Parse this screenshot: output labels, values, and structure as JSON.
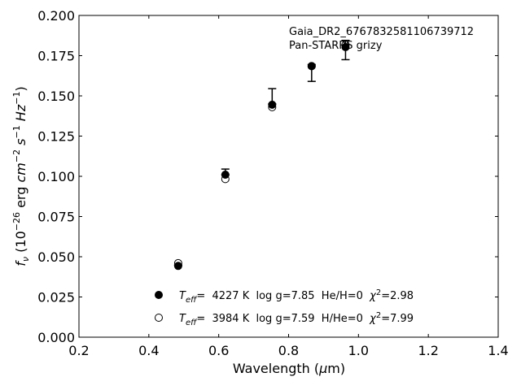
{
  "chart_data": {
    "type": "scatter",
    "title": "",
    "xlabel_main": "Wavelength (",
    "xlabel_mu": "μ",
    "xlabel_unit": "m)",
    "ylabel_parts": {
      "f": "f",
      "nu": "ν",
      "open": " (10",
      "exp26": "−26",
      "erg": " erg ",
      "cm": "cm",
      "exp2": "−2",
      "s": " s",
      "exp1a": "−1",
      "hz": " Hz",
      "exp1b": "−1",
      "close": ")"
    },
    "xlim": [
      0.2,
      1.4
    ],
    "ylim": [
      0.0,
      0.2
    ],
    "xticks": [
      "0.2",
      "0.4",
      "0.6",
      "0.8",
      "1.0",
      "1.2",
      "1.4"
    ],
    "yticks": [
      "0.000",
      "0.025",
      "0.050",
      "0.075",
      "0.100",
      "0.125",
      "0.150",
      "0.175",
      "0.200"
    ],
    "annotation": {
      "line1": "Gaia_DR2_6767832581106739712",
      "line2": "Pan-STARRS grizy"
    },
    "observed": {
      "name": "observed",
      "x": [
        0.484,
        0.619,
        0.753,
        0.866,
        0.963
      ],
      "y": [
        0.0448,
        0.101,
        0.145,
        0.1685,
        0.1808
      ],
      "yerr_low": [
        0.0446,
        0.101,
        0.145,
        0.159,
        0.1725
      ],
      "yerr_high": [
        0.0449,
        0.1045,
        0.1545,
        0.1695,
        0.1845
      ]
    },
    "series": [
      {
        "marker": "filled-circle",
        "x": [
          0.484,
          0.619,
          0.753,
          0.866,
          0.963
        ],
        "y": [
          0.0443,
          0.101,
          0.1445,
          0.1685,
          0.1803
        ],
        "legend": {
          "teff_sym": "T",
          "teff_sub": "eff",
          "text": "=  4227 K  log g=7.85  He/H=0  ",
          "chi_sym": "χ",
          "chi_sup": "2",
          "chi_val": "=2.98"
        }
      },
      {
        "marker": "open-circle",
        "x": [
          0.484,
          0.619,
          0.753,
          0.866,
          0.963
        ],
        "y": [
          0.046,
          0.0983,
          0.143,
          0.1685,
          0.1818
        ],
        "legend": {
          "teff_sym": "T",
          "teff_sub": "eff",
          "text": "=  3984 K  log g=7.59  H/He=0  ",
          "chi_sym": "χ",
          "chi_sup": "2",
          "chi_val": "=7.99"
        }
      }
    ],
    "legend_position": "lower-center",
    "grid": false
  }
}
